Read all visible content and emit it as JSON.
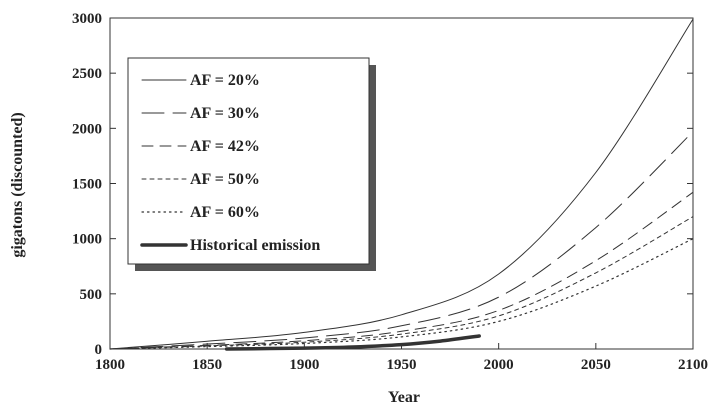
{
  "chart_data": {
    "type": "line",
    "xlabel": "Year",
    "ylabel": "gigatons (discounted)",
    "xlim": [
      1800,
      2100
    ],
    "ylim": [
      0,
      3000
    ],
    "xticks": [
      "1800",
      "1850",
      "1900",
      "1950",
      "2000",
      "2050",
      "2100"
    ],
    "yticks": [
      "0",
      "500",
      "1000",
      "1500",
      "2000",
      "2500",
      "3000"
    ],
    "legend_position": "top-left",
    "grid": false,
    "series": [
      {
        "name": "AF = 20%",
        "style": "solid",
        "x": [
          1800,
          1850,
          1900,
          1950,
          2000,
          2050,
          2100
        ],
        "y": [
          0,
          70,
          150,
          310,
          680,
          1600,
          2990
        ]
      },
      {
        "name": "AF = 30%",
        "style": "long-dash",
        "x": [
          1800,
          1850,
          1900,
          1950,
          2000,
          2050,
          2100
        ],
        "y": [
          0,
          45,
          100,
          210,
          470,
          1100,
          1970
        ]
      },
      {
        "name": "AF = 42%",
        "style": "dash",
        "x": [
          1800,
          1850,
          1900,
          1950,
          2000,
          2050,
          2100
        ],
        "y": [
          0,
          33,
          75,
          160,
          350,
          800,
          1420
        ]
      },
      {
        "name": "AF = 50%",
        "style": "short-dash",
        "x": [
          1800,
          1850,
          1900,
          1950,
          2000,
          2050,
          2100
        ],
        "y": [
          0,
          28,
          62,
          135,
          300,
          690,
          1200
        ]
      },
      {
        "name": "AF = 60%",
        "style": "dotted",
        "x": [
          1800,
          1850,
          1900,
          1950,
          2000,
          2050,
          2100
        ],
        "y": [
          0,
          22,
          50,
          110,
          250,
          570,
          1000
        ]
      },
      {
        "name": "Historical emission",
        "style": "thick",
        "x": [
          1860,
          1900,
          1925,
          1950,
          1970,
          1990
        ],
        "y": [
          0,
          8,
          18,
          40,
          72,
          118
        ]
      }
    ]
  }
}
